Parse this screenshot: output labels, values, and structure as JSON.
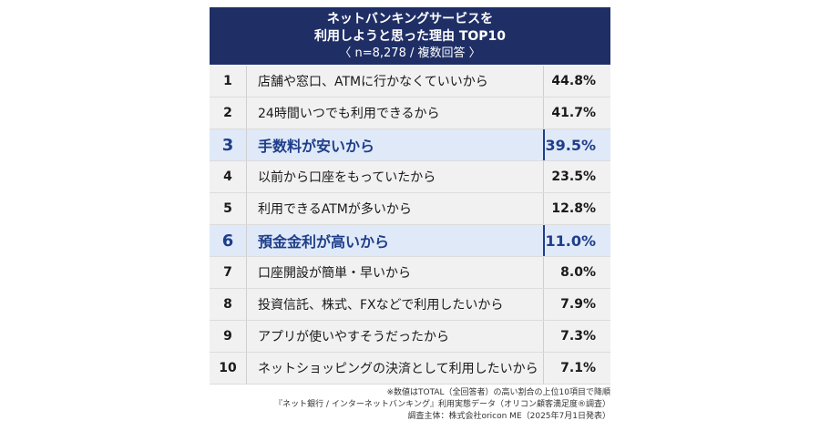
{
  "chart_data": {
    "type": "table",
    "title": "ネットバンキングサービスを\n利用しようと思った理由 TOP10",
    "title_line1": "ネットバンキングサービスを",
    "title_line2": "利用しようと思った理由 TOP10",
    "subtitle": "〈 n=8,278 / 複数回答 〉",
    "rows": [
      {
        "rank": "1",
        "label": "店舗や窓口、ATMに行かなくていいから",
        "value": "44.8%",
        "highlight": false
      },
      {
        "rank": "2",
        "label": "24時間いつでも利用できるから",
        "value": "41.7%",
        "highlight": false
      },
      {
        "rank": "3",
        "label": "手数料が安いから",
        "value": "39.5%",
        "highlight": true
      },
      {
        "rank": "4",
        "label": "以前から口座をもっていたから",
        "value": "23.5%",
        "highlight": false
      },
      {
        "rank": "5",
        "label": "利用できるATMが多いから",
        "value": "12.8%",
        "highlight": false
      },
      {
        "rank": "6",
        "label": "預金金利が高いから",
        "value": "11.0%",
        "highlight": true
      },
      {
        "rank": "7",
        "label": "口座開設が簡単・早いから",
        "value": "8.0%",
        "highlight": false
      },
      {
        "rank": "8",
        "label": "投資信託、株式、FXなどで利用したいから",
        "value": "7.9%",
        "highlight": false
      },
      {
        "rank": "9",
        "label": "アプリが使いやすそうだったから",
        "value": "7.3%",
        "highlight": false
      },
      {
        "rank": "10",
        "label": "ネットショッピングの決済として利用したいから",
        "value": "7.1%",
        "highlight": false
      }
    ],
    "notes": [
      "※数値はTOTAL（全回答者）の高い割合の上位10項目で降順",
      "『ネット銀行 / インターネットバンキング』利用実態データ（オリコン顧客満足度®調査）",
      "調査主体：株式会社oricon ME（2025年7月1日発表）"
    ],
    "colors": {
      "header_bg": "#1f2f66",
      "highlight_bg": "#dfe9f8",
      "highlight_text": "#1f3e8a",
      "row_bg": "#f1f1f1"
    }
  }
}
